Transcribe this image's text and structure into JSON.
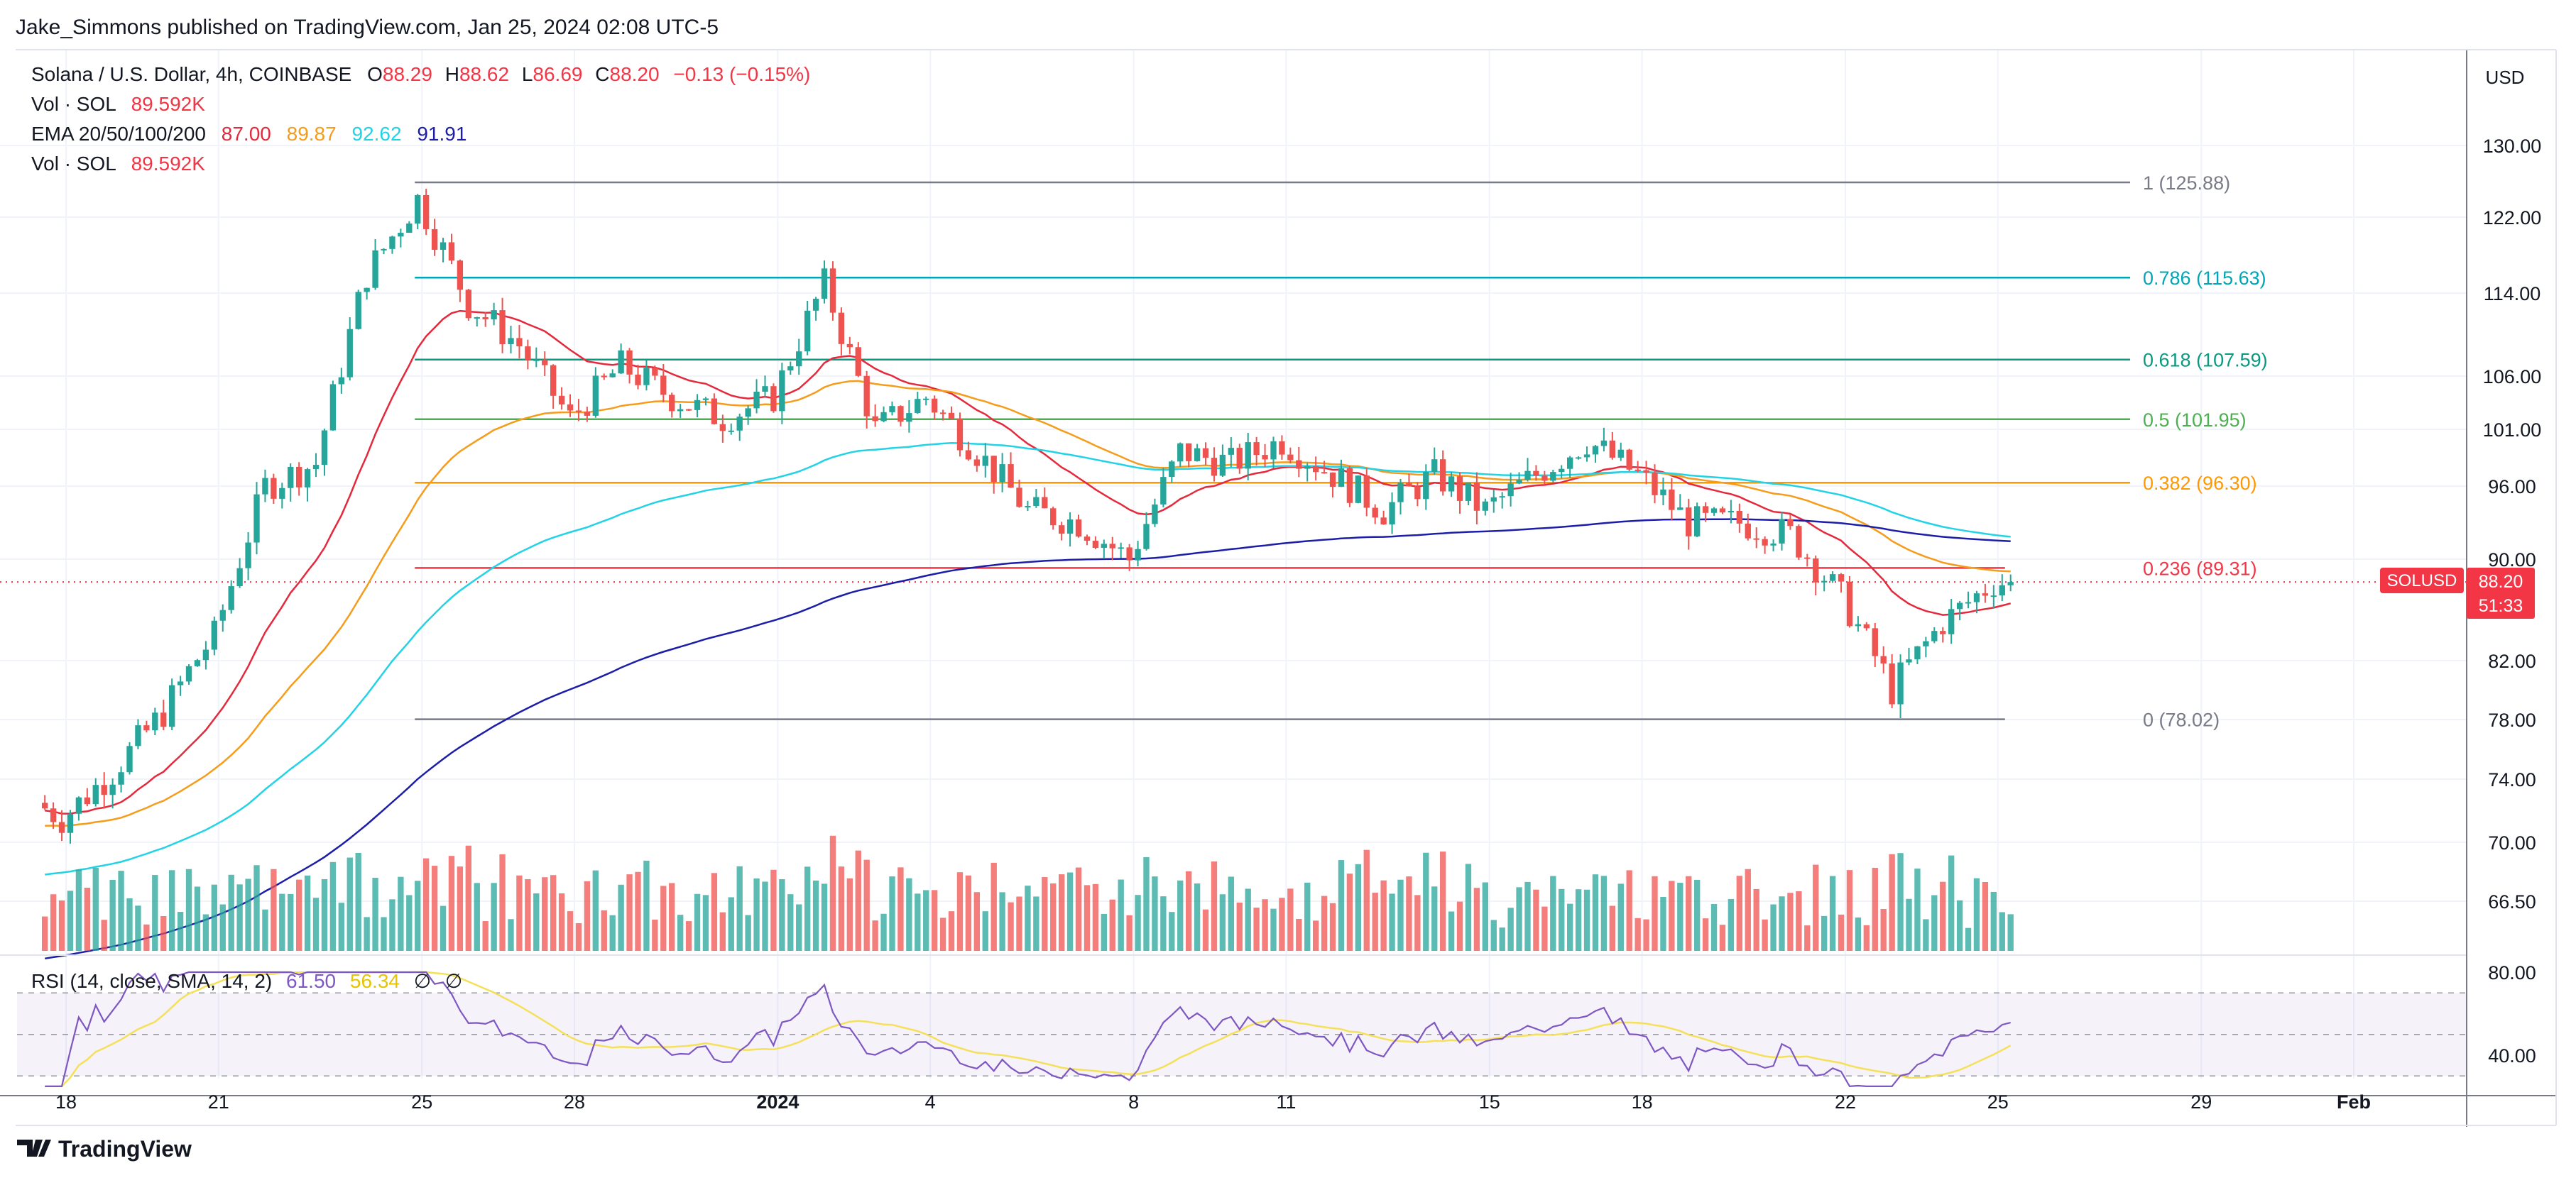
{
  "publisher_line": "Jake_Simmons published on TradingView.com, Jan 25, 2024 02:08 UTC-5",
  "footer_brand": "TradingView",
  "currency_label": "USD",
  "legend": {
    "symbol_line": "Solana / U.S. Dollar, 4h, COINBASE",
    "ohlc": [
      {
        "label": "O",
        "value": "88.29"
      },
      {
        "label": "H",
        "value": "88.62"
      },
      {
        "label": "L",
        "value": "86.69"
      },
      {
        "label": "C",
        "value": "88.20"
      }
    ],
    "change": "−0.13 (−0.15%)",
    "vol_label": "Vol · SOL",
    "vol_value": "89.592K",
    "ema_label": "EMA 20/50/100/200",
    "ema_values": [
      {
        "value": "87.00",
        "color": "#e5293c"
      },
      {
        "value": "89.87",
        "color": "#f59c1a"
      },
      {
        "value": "92.62",
        "color": "#22d3e6"
      },
      {
        "value": "91.91",
        "color": "#1c1ea8"
      }
    ],
    "vol2_label": "Vol · SOL",
    "vol2_value": "89.592K"
  },
  "rsi_legend": {
    "label": "RSI (14, close, SMA, 14, 2)",
    "value1": "61.50",
    "value2": "56.34",
    "empty1": "∅",
    "empty2": "∅"
  },
  "price_badge": {
    "symbol": "SOLUSD",
    "price": "88.20",
    "countdown": "51:33"
  },
  "colors": {
    "up": "#26a69a",
    "down": "#ef5350",
    "fib_1": "#787b86",
    "fib_786": "#00a6b5",
    "fib_618": "#089981",
    "fib_5": "#4caf50",
    "fib_382": "#ff9800",
    "fib_236": "#f23645",
    "fib_0": "#787b86",
    "rsi_line": "#7e57c2",
    "rsi_sma": "#f5e05a"
  },
  "chart_data": {
    "type": "candlestick",
    "title": "Solana / U.S. Dollar, 4h, COINBASE",
    "price_axis": {
      "ticks": [
        "130.00",
        "122.00",
        "114.00",
        "106.00",
        "101.00",
        "96.00",
        "90.00",
        "82.00",
        "78.00",
        "74.00",
        "70.00",
        "66.50"
      ]
    },
    "x_ticks": [
      "18",
      "21",
      "25",
      "28",
      "2024",
      "4",
      "8",
      "11",
      "15",
      "18",
      "22",
      "25",
      "29",
      "Feb"
    ],
    "fib_levels": [
      {
        "ratio": "1",
        "price": 125.88,
        "label": "1 (125.88)"
      },
      {
        "ratio": "0.786",
        "price": 115.63,
        "label": "0.786 (115.63)"
      },
      {
        "ratio": "0.618",
        "price": 107.59,
        "label": "0.618 (107.59)"
      },
      {
        "ratio": "0.5",
        "price": 101.95,
        "label": "0.5 (101.95)"
      },
      {
        "ratio": "0.382",
        "price": 96.3,
        "label": "0.382 (96.30)"
      },
      {
        "ratio": "0.236",
        "price": 89.31,
        "label": "0.236 (89.31)"
      },
      {
        "ratio": "0",
        "price": 78.02,
        "label": "0 (78.02)"
      }
    ],
    "price_path": [
      {
        "date": "2023-12-17",
        "price": 73.5
      },
      {
        "date": "2023-12-18",
        "price": 71.5
      },
      {
        "date": "2023-12-19",
        "price": 74.5
      },
      {
        "date": "2023-12-20",
        "price": 78.5
      },
      {
        "date": "2023-12-21",
        "price": 84
      },
      {
        "date": "2023-12-22",
        "price": 96
      },
      {
        "date": "2023-12-23",
        "price": 98
      },
      {
        "date": "2023-12-24",
        "price": 116
      },
      {
        "date": "2023-12-25",
        "price": 124
      },
      {
        "date": "2023-12-26",
        "price": 113
      },
      {
        "date": "2023-12-27",
        "price": 109
      },
      {
        "date": "2023-12-28",
        "price": 102
      },
      {
        "date": "2023-12-29",
        "price": 107
      },
      {
        "date": "2023-12-30",
        "price": 104
      },
      {
        "date": "2023-12-31",
        "price": 102
      },
      {
        "date": "2024-01-01",
        "price": 104
      },
      {
        "date": "2024-01-02",
        "price": 115
      },
      {
        "date": "2024-01-03",
        "price": 101
      },
      {
        "date": "2024-01-04",
        "price": 104
      },
      {
        "date": "2024-01-05",
        "price": 99
      },
      {
        "date": "2024-01-06",
        "price": 94
      },
      {
        "date": "2024-01-07",
        "price": 93
      },
      {
        "date": "2024-01-08",
        "price": 90
      },
      {
        "date": "2024-01-09",
        "price": 99
      },
      {
        "date": "2024-01-10",
        "price": 98
      },
      {
        "date": "2024-01-11",
        "price": 100
      },
      {
        "date": "2024-01-12",
        "price": 97
      },
      {
        "date": "2024-01-13",
        "price": 94
      },
      {
        "date": "2024-01-14",
        "price": 97
      },
      {
        "date": "2024-01-15",
        "price": 94
      },
      {
        "date": "2024-01-16",
        "price": 97
      },
      {
        "date": "2024-01-17",
        "price": 100
      },
      {
        "date": "2024-01-18",
        "price": 97
      },
      {
        "date": "2024-01-19",
        "price": 93
      },
      {
        "date": "2024-01-20",
        "price": 93
      },
      {
        "date": "2024-01-21",
        "price": 92
      },
      {
        "date": "2024-01-22",
        "price": 87
      },
      {
        "date": "2024-01-23",
        "price": 80
      },
      {
        "date": "2024-01-24",
        "price": 85
      },
      {
        "date": "2024-01-25",
        "price": 88.2
      }
    ]
  }
}
